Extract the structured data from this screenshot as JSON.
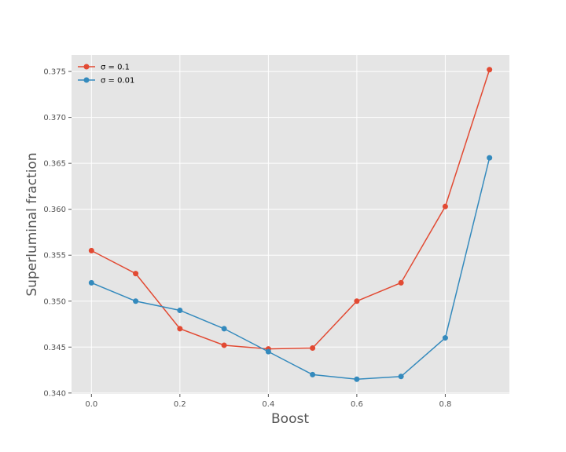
{
  "chart_data": {
    "type": "line",
    "title": "",
    "xlabel": "Boost",
    "ylabel": "Superluminal fraction",
    "x": [
      0.0,
      0.1,
      0.2,
      0.3,
      0.4,
      0.5,
      0.6,
      0.7,
      0.8,
      0.9
    ],
    "xlim": [
      -0.045,
      0.945
    ],
    "ylim": [
      0.3399,
      0.3768
    ],
    "xticks": [
      0.0,
      0.2,
      0.4,
      0.6,
      0.8
    ],
    "xtick_labels": [
      "0.0",
      "0.2",
      "0.4",
      "0.6",
      "0.8"
    ],
    "yticks": [
      0.34,
      0.345,
      0.35,
      0.355,
      0.36,
      0.365,
      0.37,
      0.375
    ],
    "ytick_labels": [
      "0.340",
      "0.345",
      "0.350",
      "0.355",
      "0.360",
      "0.365",
      "0.370",
      "0.375"
    ],
    "grid": true,
    "legend_position": "top-left",
    "series": [
      {
        "name": "σ = 0.1",
        "color": "#E24A33",
        "values": [
          0.3555,
          0.353,
          0.347,
          0.3452,
          0.3448,
          0.3449,
          0.35,
          0.352,
          0.3603,
          0.3752
        ]
      },
      {
        "name": "σ = 0.01",
        "color": "#348ABD",
        "values": [
          0.352,
          0.35,
          0.349,
          0.347,
          0.3445,
          0.342,
          0.3415,
          0.3418,
          0.346,
          0.3656
        ]
      }
    ],
    "background_color": "#E5E5E5",
    "grid_color": "#FFFFFF"
  }
}
